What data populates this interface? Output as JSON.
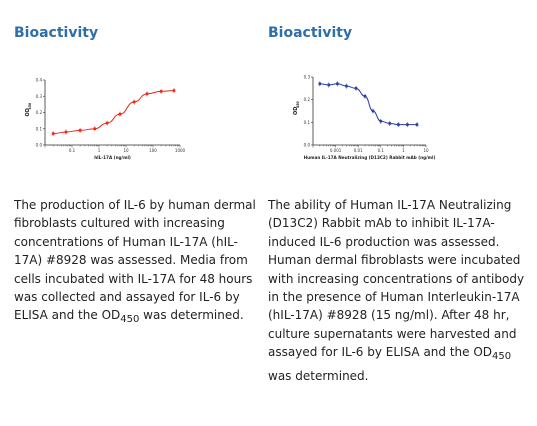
{
  "panels": [
    {
      "heading": "Bioactivity",
      "description_pre": "The production of IL-6 by human dermal fibroblasts cultured with increasing concentrations of Human IL-17A (hIL-17A) #8928 was assessed. Media from cells incubated with IL-17A for 48 hours was collected and assayed for IL-6 by ELISA and the OD",
      "description_sub": "450",
      "description_post": " was determined."
    },
    {
      "heading": "Bioactivity",
      "description_pre": "The ability of Human IL-17A Neutralizing (D13C2) Rabbit mAb to inhibit IL-17A-induced IL-6 production was assessed. Human dermal fibroblasts were incubated with increasing concentrations of antibody in the presence of Human Interleukin-17A (hIL-17A) #8928 (15 ng/ml). After 48 hr, culture supernatants were harvested and assayed for IL-6 by ELISA and the OD",
      "description_sub": "450",
      "description_post": " was determined."
    }
  ],
  "chart_data": [
    {
      "type": "line",
      "title": "",
      "xlabel": "hIL-17A (ng/ml)",
      "ylabel": "OD",
      "ylabel_sub": "450",
      "xscale": "log",
      "xlim": [
        0.01,
        1000
      ],
      "ylim": [
        0.0,
        0.4
      ],
      "xticks": [
        "0.1",
        "1",
        "10",
        "100",
        "1000"
      ],
      "yticks": [
        "0.0",
        "0.1",
        "0.2",
        "0.3",
        "0.4"
      ],
      "color": "#e8281e",
      "series": [
        {
          "points": [
            {
              "x": 0.02,
              "y": 0.07
            },
            {
              "x": 0.06,
              "y": 0.08
            },
            {
              "x": 0.2,
              "y": 0.09
            },
            {
              "x": 0.7,
              "y": 0.1
            },
            {
              "x": 2,
              "y": 0.135
            },
            {
              "x": 6,
              "y": 0.19
            },
            {
              "x": 20,
              "y": 0.265
            },
            {
              "x": 60,
              "y": 0.315
            },
            {
              "x": 200,
              "y": 0.33
            },
            {
              "x": 600,
              "y": 0.335
            }
          ]
        }
      ]
    },
    {
      "type": "line",
      "title": "",
      "xlabel": "Human IL-17A Neutralizing (D13C2) Rabbit mAb (ng/ml)",
      "ylabel": "OD",
      "ylabel_sub": "450",
      "xscale": "log",
      "xlim": [
        0.0001,
        10
      ],
      "ylim": [
        0.0,
        0.3
      ],
      "xticks": [
        "0.001",
        "0.01",
        "0.1",
        "1",
        "10"
      ],
      "yticks": [
        "0.0",
        "0.1",
        "0.2",
        "0.3"
      ],
      "color": "#2a3fa0",
      "series": [
        {
          "points": [
            {
              "x": 0.0002,
              "y": 0.27
            },
            {
              "x": 0.0005,
              "y": 0.265
            },
            {
              "x": 0.0012,
              "y": 0.27
            },
            {
              "x": 0.003,
              "y": 0.26
            },
            {
              "x": 0.008,
              "y": 0.25
            },
            {
              "x": 0.02,
              "y": 0.215
            },
            {
              "x": 0.045,
              "y": 0.15
            },
            {
              "x": 0.1,
              "y": 0.105
            },
            {
              "x": 0.25,
              "y": 0.095
            },
            {
              "x": 0.6,
              "y": 0.09
            },
            {
              "x": 1.5,
              "y": 0.09
            },
            {
              "x": 4,
              "y": 0.09
            }
          ]
        }
      ]
    }
  ]
}
